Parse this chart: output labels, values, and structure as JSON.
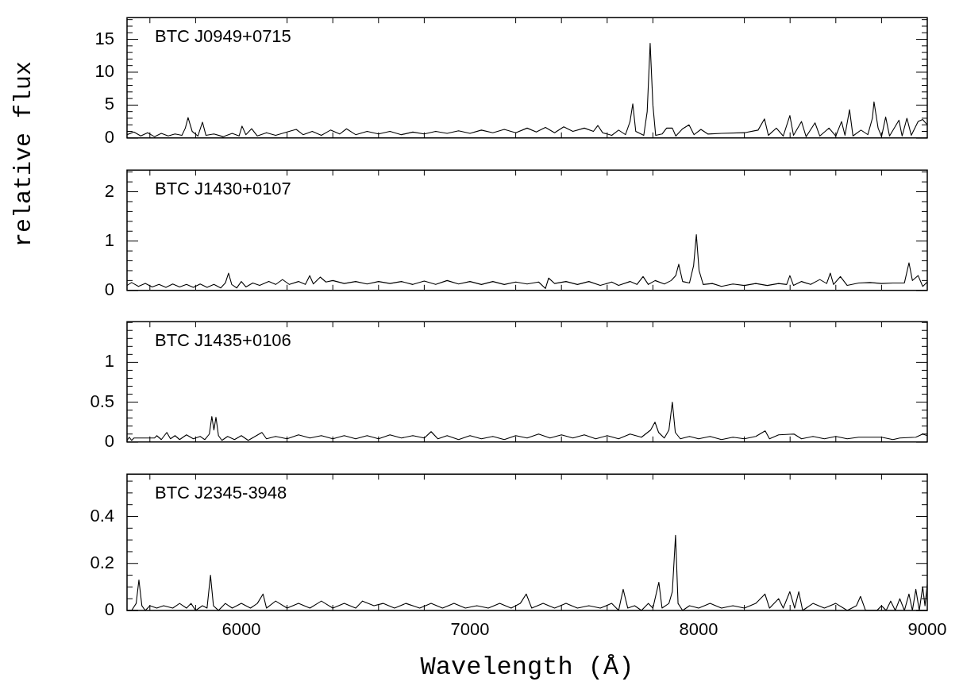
{
  "chart_data": [
    {
      "type": "line",
      "title": "BTC J0949+0715",
      "color": "#000000",
      "tick_labels": "y",
      "xlim": [
        5500,
        9000
      ],
      "xticks": [
        {
          "value": 5600,
          "label": null
        },
        {
          "value": 5800,
          "label": null
        },
        6000,
        {
          "value": 6200,
          "label": null
        },
        {
          "value": 6400,
          "label": null
        },
        {
          "value": 6600,
          "label": null
        },
        {
          "value": 6800,
          "label": null
        },
        7000,
        {
          "value": 7200,
          "label": null
        },
        {
          "value": 7400,
          "label": null
        },
        {
          "value": 7600,
          "label": null
        },
        {
          "value": 7800,
          "label": null
        },
        8000,
        {
          "value": 8200,
          "label": null
        },
        {
          "value": 8400,
          "label": null
        },
        {
          "value": 8600,
          "label": null
        },
        {
          "value": 8800,
          "label": null
        },
        9000
      ],
      "ylim": [
        0,
        18.3
      ],
      "yticks": [
        0,
        {
          "value": 1,
          "label": null
        },
        {
          "value": 2,
          "label": null
        },
        {
          "value": 3,
          "label": null
        },
        {
          "value": 4,
          "label": null
        },
        5,
        {
          "value": 6,
          "label": null
        },
        {
          "value": 7,
          "label": null
        },
        {
          "value": 8,
          "label": null
        },
        {
          "value": 9,
          "label": null
        },
        10,
        {
          "value": 11,
          "label": null
        },
        {
          "value": 12,
          "label": null
        },
        {
          "value": 13,
          "label": null
        },
        {
          "value": 14,
          "label": null
        },
        15,
        {
          "value": 16,
          "label": null
        },
        {
          "value": 17,
          "label": null
        },
        {
          "value": 18,
          "label": null
        }
      ],
      "x": [
        5500,
        5530,
        5560,
        5590,
        5620,
        5650,
        5680,
        5710,
        5740,
        5755,
        5767,
        5785,
        5810,
        5830,
        5845,
        5880,
        5920,
        5960,
        5990,
        6003,
        6020,
        6045,
        6070,
        6110,
        6150,
        6200,
        6240,
        6270,
        6310,
        6350,
        6390,
        6430,
        6460,
        6500,
        6550,
        6600,
        6650,
        6700,
        6750,
        6800,
        6850,
        6900,
        6950,
        7000,
        7050,
        7100,
        7150,
        7200,
        7250,
        7290,
        7330,
        7370,
        7410,
        7450,
        7500,
        7540,
        7559,
        7580,
        7620,
        7650,
        7680,
        7700,
        7712,
        7725,
        7760,
        7775,
        7788,
        7800,
        7812,
        7840,
        7860,
        7885,
        7900,
        7930,
        7958,
        7980,
        8010,
        8040,
        8100,
        8200,
        8260,
        8288,
        8305,
        8340,
        8370,
        8399,
        8415,
        8450,
        8470,
        8509,
        8530,
        8570,
        8600,
        8625,
        8640,
        8660,
        8675,
        8710,
        8740,
        8760,
        8767,
        8785,
        8800,
        8818,
        8835,
        8876,
        8890,
        8911,
        8930,
        8960,
        8980,
        9000
      ],
      "values": [
        0.5,
        0.9,
        0.3,
        0.8,
        0.2,
        0.7,
        0.3,
        0.6,
        0.4,
        1.5,
        3.1,
        1.0,
        0.3,
        2.4,
        0.4,
        0.6,
        0.2,
        0.7,
        0.3,
        1.8,
        0.5,
        1.4,
        0.3,
        0.8,
        0.4,
        0.9,
        1.3,
        0.5,
        1.0,
        0.4,
        1.2,
        0.6,
        1.4,
        0.5,
        1.0,
        0.6,
        1.0,
        0.5,
        0.9,
        0.6,
        1.0,
        0.7,
        1.1,
        0.7,
        1.2,
        0.8,
        1.3,
        0.8,
        1.5,
        0.9,
        1.6,
        0.8,
        1.7,
        1.0,
        1.5,
        1.0,
        1.9,
        0.8,
        0.4,
        1.2,
        0.5,
        2.5,
        5.2,
        1.0,
        0.4,
        4.0,
        14.4,
        5.0,
        0.4,
        0.6,
        1.5,
        1.5,
        0.3,
        1.4,
        2.0,
        0.5,
        1.3,
        0.6,
        0.7,
        0.8,
        1.2,
        2.9,
        0.4,
        1.5,
        0.3,
        3.4,
        0.4,
        2.5,
        0.2,
        2.3,
        0.3,
        1.5,
        0.3,
        2.5,
        0.4,
        4.3,
        0.3,
        1.2,
        0.5,
        3.0,
        5.5,
        1.5,
        0.2,
        3.2,
        0.3,
        2.7,
        0.3,
        3.0,
        0.4,
        2.5,
        2.8,
        2.0
      ]
    },
    {
      "type": "line",
      "title": "BTC J1430+0107",
      "ylabel": "relative flux",
      "color": "#000000",
      "tick_labels": "y",
      "xlim": [
        5500,
        9000
      ],
      "xticks": [
        {
          "value": 5600,
          "label": null
        },
        {
          "value": 5800,
          "label": null
        },
        6000,
        {
          "value": 6200,
          "label": null
        },
        {
          "value": 6400,
          "label": null
        },
        {
          "value": 6600,
          "label": null
        },
        {
          "value": 6800,
          "label": null
        },
        7000,
        {
          "value": 7200,
          "label": null
        },
        {
          "value": 7400,
          "label": null
        },
        {
          "value": 7600,
          "label": null
        },
        {
          "value": 7800,
          "label": null
        },
        8000,
        {
          "value": 8200,
          "label": null
        },
        {
          "value": 8400,
          "label": null
        },
        {
          "value": 8600,
          "label": null
        },
        {
          "value": 8800,
          "label": null
        },
        9000
      ],
      "ylim": [
        0,
        2.44
      ],
      "yticks": [
        0,
        {
          "value": 0.2,
          "label": null
        },
        {
          "value": 0.4,
          "label": null
        },
        {
          "value": 0.6,
          "label": null
        },
        {
          "value": 0.8,
          "label": null
        },
        1,
        {
          "value": 1.2,
          "label": null
        },
        {
          "value": 1.4,
          "label": null
        },
        {
          "value": 1.6,
          "label": null
        },
        {
          "value": 1.8,
          "label": null
        },
        2,
        {
          "value": 2.2,
          "label": null
        },
        {
          "value": 2.4,
          "label": null
        }
      ],
      "x": [
        5500,
        5520,
        5550,
        5580,
        5610,
        5640,
        5670,
        5700,
        5730,
        5760,
        5790,
        5820,
        5850,
        5880,
        5910,
        5930,
        5944,
        5958,
        5980,
        6000,
        6020,
        6050,
        6080,
        6120,
        6150,
        6180,
        6210,
        6250,
        6280,
        6299,
        6315,
        6345,
        6370,
        6400,
        6450,
        6500,
        6550,
        6600,
        6650,
        6700,
        6750,
        6800,
        6850,
        6900,
        6950,
        7000,
        7050,
        7100,
        7150,
        7200,
        7250,
        7300,
        7330,
        7344,
        7370,
        7420,
        7470,
        7520,
        7570,
        7620,
        7650,
        7700,
        7730,
        7757,
        7780,
        7810,
        7850,
        7880,
        7900,
        7913,
        7930,
        7960,
        7978,
        7990,
        8002,
        8020,
        8060,
        8100,
        8150,
        8200,
        8250,
        8300,
        8350,
        8385,
        8399,
        8415,
        8450,
        8490,
        8530,
        8560,
        8576,
        8590,
        8620,
        8650,
        8700,
        8750,
        8800,
        8850,
        8900,
        8920,
        8935,
        8960,
        8980,
        9000
      ],
      "values": [
        0.1,
        0.16,
        0.08,
        0.14,
        0.07,
        0.12,
        0.06,
        0.13,
        0.07,
        0.12,
        0.06,
        0.13,
        0.06,
        0.12,
        0.05,
        0.15,
        0.35,
        0.12,
        0.05,
        0.18,
        0.07,
        0.15,
        0.1,
        0.18,
        0.12,
        0.22,
        0.12,
        0.18,
        0.12,
        0.3,
        0.13,
        0.27,
        0.17,
        0.2,
        0.14,
        0.18,
        0.13,
        0.18,
        0.14,
        0.18,
        0.12,
        0.19,
        0.12,
        0.2,
        0.13,
        0.18,
        0.12,
        0.18,
        0.12,
        0.17,
        0.13,
        0.17,
        0.04,
        0.25,
        0.14,
        0.18,
        0.12,
        0.18,
        0.1,
        0.17,
        0.1,
        0.18,
        0.12,
        0.28,
        0.12,
        0.2,
        0.13,
        0.2,
        0.3,
        0.53,
        0.18,
        0.15,
        0.5,
        1.13,
        0.4,
        0.12,
        0.14,
        0.08,
        0.13,
        0.1,
        0.14,
        0.1,
        0.14,
        0.12,
        0.3,
        0.1,
        0.18,
        0.12,
        0.22,
        0.14,
        0.35,
        0.12,
        0.28,
        0.1,
        0.15,
        0.16,
        0.14,
        0.15,
        0.15,
        0.56,
        0.2,
        0.3,
        0.08,
        0.17
      ]
    },
    {
      "type": "line",
      "title": "BTC J1435+0106",
      "color": "#000000",
      "tick_labels": "y",
      "xlim": [
        5500,
        9000
      ],
      "xticks": [
        {
          "value": 5600,
          "label": null
        },
        {
          "value": 5800,
          "label": null
        },
        6000,
        {
          "value": 6200,
          "label": null
        },
        {
          "value": 6400,
          "label": null
        },
        {
          "value": 6600,
          "label": null
        },
        {
          "value": 6800,
          "label": null
        },
        7000,
        {
          "value": 7200,
          "label": null
        },
        {
          "value": 7400,
          "label": null
        },
        {
          "value": 7600,
          "label": null
        },
        {
          "value": 7800,
          "label": null
        },
        8000,
        {
          "value": 8200,
          "label": null
        },
        {
          "value": 8400,
          "label": null
        },
        {
          "value": 8600,
          "label": null
        },
        {
          "value": 8800,
          "label": null
        },
        9000
      ],
      "ylim": [
        0,
        1.51
      ],
      "yticks": [
        0,
        {
          "value": 0.1,
          "label": null
        },
        {
          "value": 0.2,
          "label": null
        },
        {
          "value": 0.3,
          "label": null
        },
        {
          "value": 0.4,
          "label": null
        },
        0.5,
        {
          "value": 0.6,
          "label": null
        },
        {
          "value": 0.7,
          "label": null
        },
        {
          "value": 0.8,
          "label": null
        },
        {
          "value": 0.9,
          "label": null
        },
        1,
        {
          "value": 1.1,
          "label": null
        },
        {
          "value": 1.2,
          "label": null
        },
        {
          "value": 1.3,
          "label": null
        },
        {
          "value": 1.4,
          "label": null
        },
        {
          "value": 1.5,
          "label": null
        }
      ],
      "x": [
        5500,
        5510,
        5520,
        5530,
        5620,
        5630,
        5650,
        5674,
        5690,
        5710,
        5730,
        5760,
        5790,
        5820,
        5840,
        5860,
        5871,
        5880,
        5889,
        5900,
        5915,
        5940,
        5970,
        6000,
        6030,
        6060,
        6090,
        6110,
        6150,
        6200,
        6250,
        6300,
        6350,
        6400,
        6450,
        6500,
        6550,
        6600,
        6650,
        6700,
        6750,
        6800,
        6830,
        6860,
        6900,
        6950,
        7000,
        7050,
        7100,
        7150,
        7200,
        7250,
        7300,
        7350,
        7400,
        7450,
        7500,
        7550,
        7600,
        7650,
        7700,
        7750,
        7790,
        7809,
        7825,
        7850,
        7870,
        7885,
        7898,
        7920,
        7960,
        8000,
        8050,
        8100,
        8150,
        8200,
        8250,
        8291,
        8310,
        8350,
        8417,
        8450,
        8500,
        8550,
        8600,
        8650,
        8700,
        8750,
        8800,
        8850,
        8880,
        8950,
        8980,
        9000
      ],
      "values": [
        0.02,
        0.06,
        0.02,
        0.05,
        0.05,
        0.08,
        0.03,
        0.12,
        0.04,
        0.08,
        0.03,
        0.09,
        0.04,
        0.07,
        0.03,
        0.1,
        0.32,
        0.15,
        0.31,
        0.08,
        0.02,
        0.07,
        0.03,
        0.08,
        0.02,
        0.07,
        0.12,
        0.04,
        0.07,
        0.04,
        0.09,
        0.05,
        0.08,
        0.04,
        0.08,
        0.04,
        0.08,
        0.04,
        0.09,
        0.05,
        0.08,
        0.05,
        0.13,
        0.04,
        0.08,
        0.03,
        0.08,
        0.04,
        0.07,
        0.03,
        0.08,
        0.05,
        0.1,
        0.05,
        0.09,
        0.05,
        0.09,
        0.04,
        0.08,
        0.04,
        0.1,
        0.06,
        0.15,
        0.25,
        0.12,
        0.05,
        0.15,
        0.5,
        0.12,
        0.04,
        0.07,
        0.04,
        0.07,
        0.03,
        0.06,
        0.04,
        0.07,
        0.14,
        0.04,
        0.09,
        0.1,
        0.04,
        0.07,
        0.04,
        0.07,
        0.04,
        0.06,
        0.06,
        0.06,
        0.03,
        0.05,
        0.06,
        0.1,
        0.08
      ]
    },
    {
      "type": "line",
      "title": "BTC J2345-3948",
      "xlabel": "Wavelength (Å)",
      "color": "#000000",
      "xlim": [
        5500,
        9000
      ],
      "xticks": [
        {
          "value": 5600,
          "label": null
        },
        {
          "value": 5800,
          "label": null
        },
        6000,
        {
          "value": 6200,
          "label": null
        },
        {
          "value": 6400,
          "label": null
        },
        {
          "value": 6600,
          "label": null
        },
        {
          "value": 6800,
          "label": null
        },
        7000,
        {
          "value": 7200,
          "label": null
        },
        {
          "value": 7400,
          "label": null
        },
        {
          "value": 7600,
          "label": null
        },
        {
          "value": 7800,
          "label": null
        },
        8000,
        {
          "value": 8200,
          "label": null
        },
        {
          "value": 8400,
          "label": null
        },
        {
          "value": 8600,
          "label": null
        },
        {
          "value": 8800,
          "label": null
        },
        9000
      ],
      "ylim": [
        0,
        0.58
      ],
      "yticks": [
        0,
        {
          "value": 0.05,
          "label": null
        },
        {
          "value": 0.1,
          "label": null
        },
        {
          "value": 0.15,
          "label": null
        },
        0.2,
        {
          "value": 0.25,
          "label": null
        },
        {
          "value": 0.3,
          "label": null
        },
        {
          "value": 0.35,
          "label": null
        },
        0.4,
        {
          "value": 0.45,
          "label": null
        },
        {
          "value": 0.5,
          "label": null
        },
        {
          "value": 0.55,
          "label": null
        }
      ],
      "x": [
        5500,
        5520,
        5540,
        5552,
        5565,
        5580,
        5600,
        5630,
        5660,
        5700,
        5730,
        5760,
        5780,
        5800,
        5830,
        5850,
        5865,
        5878,
        5900,
        5930,
        5960,
        6000,
        6040,
        6070,
        6095,
        6110,
        6150,
        6200,
        6250,
        6300,
        6350,
        6400,
        6450,
        6500,
        6530,
        6580,
        6620,
        6670,
        6720,
        6780,
        6830,
        6880,
        6930,
        6980,
        7030,
        7080,
        7130,
        7180,
        7220,
        7246,
        7270,
        7320,
        7370,
        7420,
        7470,
        7520,
        7570,
        7620,
        7650,
        7670,
        7690,
        7720,
        7750,
        7780,
        7800,
        7826,
        7840,
        7870,
        7885,
        7899,
        7910,
        7930,
        7960,
        8000,
        8050,
        8100,
        8150,
        8200,
        8250,
        8290,
        8310,
        8350,
        8370,
        8399,
        8420,
        8438,
        8455,
        8500,
        8550,
        8600,
        8650,
        8690,
        8708,
        8730,
        8780,
        8800,
        8820,
        8840,
        8860,
        8880,
        8900,
        8920,
        8935,
        8950,
        8965,
        8980,
        8990,
        9000
      ],
      "values": [
        0.0,
        0.0,
        0.03,
        0.13,
        0.02,
        0.0,
        0.02,
        0.01,
        0.02,
        0.01,
        0.03,
        0.01,
        0.03,
        0.0,
        0.02,
        0.01,
        0.15,
        0.02,
        0.0,
        0.03,
        0.01,
        0.03,
        0.01,
        0.03,
        0.07,
        0.01,
        0.04,
        0.01,
        0.03,
        0.01,
        0.04,
        0.01,
        0.03,
        0.01,
        0.04,
        0.02,
        0.03,
        0.01,
        0.03,
        0.01,
        0.03,
        0.01,
        0.03,
        0.01,
        0.02,
        0.01,
        0.03,
        0.01,
        0.03,
        0.07,
        0.01,
        0.03,
        0.01,
        0.03,
        0.01,
        0.02,
        0.01,
        0.03,
        0.0,
        0.09,
        0.01,
        0.02,
        0.0,
        0.03,
        0.01,
        0.12,
        0.01,
        0.03,
        0.08,
        0.32,
        0.03,
        0.0,
        0.02,
        0.01,
        0.03,
        0.01,
        0.02,
        0.01,
        0.03,
        0.07,
        0.01,
        0.05,
        0.01,
        0.08,
        0.01,
        0.08,
        0.0,
        0.03,
        0.01,
        0.03,
        0.0,
        0.02,
        0.06,
        0.0,
        0.0,
        0.02,
        0.0,
        0.04,
        0.0,
        0.05,
        0.0,
        0.07,
        0.0,
        0.09,
        0.0,
        0.1,
        0.02,
        0.11
      ]
    }
  ]
}
